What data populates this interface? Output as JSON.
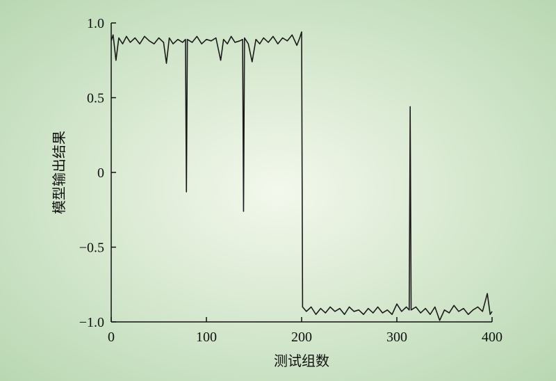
{
  "chart_data": {
    "type": "line",
    "xlabel": "测试组数",
    "ylabel": "模型输出结果",
    "xlim": [
      0,
      400
    ],
    "ylim": [
      -1,
      1
    ],
    "xticks": [
      0,
      100,
      200,
      300,
      400
    ],
    "yticks": [
      {
        "value": 1,
        "label": "1.0"
      },
      0.5,
      0,
      {
        "value": -0.5,
        "label": "−0.5"
      },
      {
        "value": -1,
        "label": "−1.0"
      }
    ],
    "x": [
      0,
      2,
      5,
      8,
      12,
      16,
      20,
      25,
      30,
      35,
      40,
      45,
      50,
      55,
      58,
      61,
      65,
      70,
      75,
      78,
      79,
      80,
      85,
      90,
      95,
      100,
      105,
      110,
      115,
      118,
      122,
      126,
      130,
      135,
      138,
      139,
      140,
      144,
      148,
      152,
      156,
      160,
      165,
      170,
      175,
      180,
      185,
      190,
      195,
      198,
      200,
      201,
      205,
      210,
      215,
      220,
      225,
      230,
      235,
      240,
      245,
      250,
      255,
      260,
      265,
      270,
      275,
      280,
      285,
      290,
      295,
      300,
      305,
      310,
      313,
      314,
      315,
      320,
      325,
      330,
      335,
      340,
      345,
      350,
      355,
      360,
      365,
      370,
      375,
      380,
      385,
      390,
      395,
      398,
      400
    ],
    "series": [
      {
        "color": "#1a1a1a",
        "values": [
          0.88,
          0.92,
          0.75,
          0.9,
          0.86,
          0.91,
          0.87,
          0.9,
          0.86,
          0.91,
          0.88,
          0.86,
          0.9,
          0.87,
          0.73,
          0.9,
          0.86,
          0.89,
          0.87,
          0.89,
          -0.13,
          0.89,
          0.87,
          0.91,
          0.86,
          0.89,
          0.88,
          0.9,
          0.75,
          0.89,
          0.86,
          0.91,
          0.87,
          0.88,
          0.89,
          -0.26,
          0.9,
          0.86,
          0.74,
          0.89,
          0.86,
          0.9,
          0.87,
          0.91,
          0.86,
          0.9,
          0.88,
          0.92,
          0.85,
          0.9,
          0.94,
          -0.9,
          -0.93,
          -0.9,
          -0.95,
          -0.91,
          -0.94,
          -0.9,
          -0.93,
          -0.91,
          -0.95,
          -0.9,
          -0.93,
          -0.92,
          -0.95,
          -0.91,
          -0.94,
          -0.9,
          -0.94,
          -0.92,
          -0.95,
          -0.88,
          -0.93,
          -0.9,
          -0.92,
          0.44,
          -0.92,
          -0.9,
          -0.94,
          -0.91,
          -0.95,
          -0.9,
          -0.99,
          -0.92,
          -0.94,
          -0.89,
          -0.93,
          -0.91,
          -0.95,
          -0.92,
          -0.9,
          -0.93,
          -0.81,
          -0.95,
          -0.93
        ]
      }
    ]
  }
}
